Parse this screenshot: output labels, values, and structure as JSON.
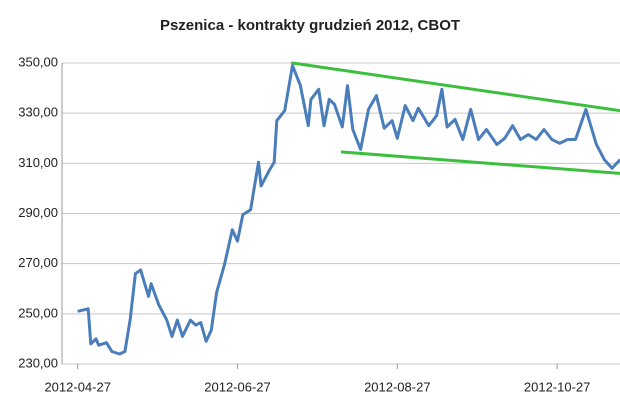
{
  "chart_data": {
    "type": "line",
    "title": "Pszenica - kontrakty grudzień 2012, CBOT",
    "xlim": [
      "2012-04-21",
      "2012-11-20"
    ],
    "xticks": [
      "2012-04-27",
      "2012-06-27",
      "2012-08-27",
      "2012-10-27"
    ],
    "ylim": [
      230,
      350
    ],
    "yticks": [
      {
        "value": 230,
        "label": "230,00"
      },
      {
        "value": 250,
        "label": "250,00"
      },
      {
        "value": 270,
        "label": "270,00"
      },
      {
        "value": 290,
        "label": "290,00"
      },
      {
        "value": 310,
        "label": "310,00"
      },
      {
        "value": 330,
        "label": "330,00"
      },
      {
        "value": 350,
        "label": "350,00"
      }
    ],
    "grid": true,
    "series": [
      {
        "color": "#4a7ebb",
        "x": [
          "2012-04-27",
          "2012-05-01",
          "2012-05-02",
          "2012-05-04",
          "2012-05-05",
          "2012-05-08",
          "2012-05-10",
          "2012-05-13",
          "2012-05-15",
          "2012-05-17",
          "2012-05-19",
          "2012-05-21",
          "2012-05-24",
          "2012-05-25",
          "2012-05-28",
          "2012-05-31",
          "2012-06-02",
          "2012-06-04",
          "2012-06-06",
          "2012-06-09",
          "2012-06-11",
          "2012-06-13",
          "2012-06-15",
          "2012-06-17",
          "2012-06-19",
          "2012-06-22",
          "2012-06-25",
          "2012-06-27",
          "2012-06-29",
          "2012-07-02",
          "2012-07-05",
          "2012-07-06",
          "2012-07-09",
          "2012-07-11",
          "2012-07-12",
          "2012-07-15",
          "2012-07-18",
          "2012-07-21",
          "2012-07-24",
          "2012-07-25",
          "2012-07-28",
          "2012-07-30",
          "2012-08-01",
          "2012-08-03",
          "2012-08-06",
          "2012-08-08",
          "2012-08-10",
          "2012-08-13",
          "2012-08-16",
          "2012-08-19",
          "2012-08-22",
          "2012-08-25",
          "2012-08-27",
          "2012-08-30",
          "2012-09-02",
          "2012-09-04",
          "2012-09-08",
          "2012-09-11",
          "2012-09-13",
          "2012-09-15",
          "2012-09-18",
          "2012-09-21",
          "2012-09-24",
          "2012-09-27",
          "2012-09-30",
          "2012-10-04",
          "2012-10-07",
          "2012-10-10",
          "2012-10-13",
          "2012-10-16",
          "2012-10-19",
          "2012-10-22",
          "2012-10-25",
          "2012-10-28",
          "2012-10-31",
          "2012-11-03",
          "2012-11-07",
          "2012-11-11",
          "2012-11-14",
          "2012-11-17",
          "2012-11-20"
        ],
        "values": [
          251,
          252,
          238,
          240,
          237.5,
          238.5,
          235,
          234,
          235,
          247.5,
          266,
          267.5,
          257,
          262,
          253.5,
          247.5,
          241,
          247.5,
          241,
          247.5,
          245.5,
          246.5,
          239,
          243.5,
          258.5,
          269.5,
          283.5,
          279,
          289.5,
          291.5,
          310.5,
          301,
          307,
          310.5,
          327,
          331,
          349,
          341,
          325,
          335.5,
          339.5,
          325,
          335.5,
          333.5,
          324.5,
          341,
          323.5,
          315.5,
          331.5,
          337,
          324,
          327,
          320,
          333,
          327,
          332,
          325,
          329,
          339.5,
          324.5,
          327.5,
          319.5,
          331.5,
          319.5,
          323.5,
          317.5,
          320,
          325,
          319.5,
          321.5,
          319.5,
          323.5,
          319.5,
          318,
          319.5,
          319.5,
          331.5,
          317.5,
          311.5,
          308,
          311.5
        ]
      }
    ],
    "trendlines": [
      {
        "color": "#3cbf3c",
        "x": [
          "2012-07-18",
          "2012-11-20"
        ],
        "values": [
          350,
          331
        ]
      },
      {
        "color": "#3cbf3c",
        "x": [
          "2012-08-06",
          "2012-11-20"
        ],
        "values": [
          314.5,
          306
        ]
      }
    ]
  }
}
